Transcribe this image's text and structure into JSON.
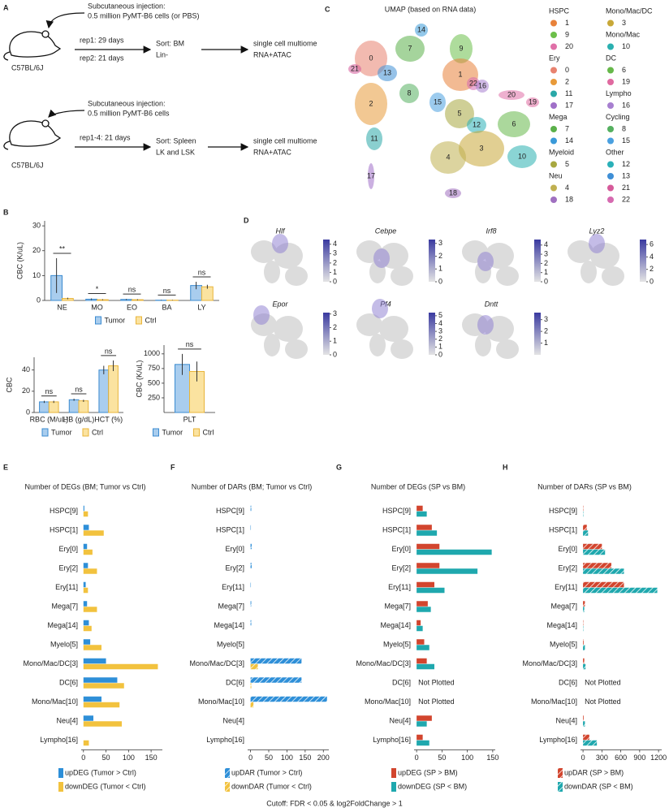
{
  "panels": [
    "A",
    "B",
    "C",
    "D",
    "E",
    "F",
    "G",
    "H"
  ],
  "footer": "Cutoff: FDR < 0.05 & log2FoldChange > 1",
  "experiments": [
    {
      "injection": [
        "Subcutaneous injection:",
        "0.5 million PyMT-B6 cells (or PBS)"
      ],
      "reps": [
        "rep1: 29 days",
        "rep2: 21 days"
      ],
      "sort": [
        "Sort: BM",
        "Lin-"
      ],
      "output": [
        "single cell multiome",
        "RNA+ATAC"
      ],
      "mouse": "C57BL/6J"
    },
    {
      "injection": [
        "Subcutaneous injection:",
        "0.5 million PyMT-B6 cells"
      ],
      "reps": [
        "rep1-4: 21 days"
      ],
      "sort": [
        "Sort: Spleen",
        "LK and LSK"
      ],
      "output": [
        "single cell multiome",
        "RNA+ATAC"
      ],
      "mouse": "C57BL/6J"
    }
  ],
  "umap": {
    "title": "UMAP (based on RNA data)",
    "clusters": [
      {
        "label": "0",
        "color": "#e8826f"
      },
      {
        "label": "7",
        "color": "#5bb04a"
      },
      {
        "label": "14",
        "color": "#3a9ad9"
      },
      {
        "label": "9",
        "color": "#6cbf4a"
      },
      {
        "label": "21",
        "color": "#d65a9a"
      },
      {
        "label": "13",
        "color": "#3f8fd6"
      },
      {
        "label": "1",
        "color": "#e8823a"
      },
      {
        "label": "22",
        "color": "#d66ab0"
      },
      {
        "label": "16",
        "color": "#a77fd0"
      },
      {
        "label": "2",
        "color": "#e89a3a"
      },
      {
        "label": "8",
        "color": "#55b060"
      },
      {
        "label": "15",
        "color": "#4aa0e0"
      },
      {
        "label": "5",
        "color": "#a8a840"
      },
      {
        "label": "12",
        "color": "#2ab0b8"
      },
      {
        "label": "20",
        "color": "#e070a8"
      },
      {
        "label": "19",
        "color": "#e06aa0"
      },
      {
        "label": "6",
        "color": "#66b84a"
      },
      {
        "label": "11",
        "color": "#2aa8a8"
      },
      {
        "label": "3",
        "color": "#c8a838"
      },
      {
        "label": "10",
        "color": "#2ab0b0"
      },
      {
        "label": "4",
        "color": "#c0b050"
      },
      {
        "label": "17",
        "color": "#a070c8"
      },
      {
        "label": "18",
        "color": "#a070c0"
      }
    ],
    "legend_columns": [
      [
        {
          "title": "HSPC",
          "items": [
            {
              "label": "1",
              "color": "#e8823a"
            },
            {
              "label": "9",
              "color": "#6cbf4a"
            },
            {
              "label": "20",
              "color": "#e070a8"
            }
          ]
        },
        {
          "title": "Ery",
          "items": [
            {
              "label": "0",
              "color": "#e8826f"
            },
            {
              "label": "2",
              "color": "#e89a3a"
            },
            {
              "label": "11",
              "color": "#2aa8a8"
            },
            {
              "label": "17",
              "color": "#a070c8"
            }
          ]
        },
        {
          "title": "Mega",
          "items": [
            {
              "label": "7",
              "color": "#5bb04a"
            },
            {
              "label": "14",
              "color": "#3a9ad9"
            }
          ]
        },
        {
          "title": "Myeloid",
          "items": [
            {
              "label": "5",
              "color": "#a8a840"
            }
          ]
        },
        {
          "title": "Neu",
          "items": [
            {
              "label": "4",
              "color": "#c0b050"
            },
            {
              "label": "18",
              "color": "#a070c0"
            }
          ]
        }
      ],
      [
        {
          "title": "Mono/Mac/DC",
          "items": [
            {
              "label": "3",
              "color": "#c8a838"
            }
          ]
        },
        {
          "title": "Mono/Mac",
          "items": [
            {
              "label": "10",
              "color": "#2ab0b0"
            }
          ]
        },
        {
          "title": "DC",
          "items": [
            {
              "label": "6",
              "color": "#66b84a"
            },
            {
              "label": "19",
              "color": "#e06aa0"
            }
          ]
        },
        {
          "title": "Lympho",
          "items": [
            {
              "label": "16",
              "color": "#a77fd0"
            }
          ]
        },
        {
          "title": "Cycling",
          "items": [
            {
              "label": "8",
              "color": "#55b060"
            },
            {
              "label": "15",
              "color": "#4aa0e0"
            }
          ]
        },
        {
          "title": "Other",
          "items": [
            {
              "label": "12",
              "color": "#2ab0b8"
            },
            {
              "label": "13",
              "color": "#3f8fd6"
            },
            {
              "label": "21",
              "color": "#d65a9a"
            },
            {
              "label": "22",
              "color": "#d66ab0"
            }
          ]
        }
      ]
    ]
  },
  "features": [
    {
      "gene": "Hlf",
      "lim": [
        0,
        4.5
      ],
      "ticks": [
        0,
        1,
        2,
        3,
        4
      ]
    },
    {
      "gene": "Cebpe",
      "lim": [
        0,
        3.3
      ],
      "ticks": [
        0,
        1,
        2,
        3
      ]
    },
    {
      "gene": "Irf8",
      "lim": [
        0,
        4.6
      ],
      "ticks": [
        0,
        1,
        2,
        3,
        4
      ]
    },
    {
      "gene": "Lyz2",
      "lim": [
        0,
        6.8
      ],
      "ticks": [
        0,
        2,
        4,
        6
      ]
    },
    {
      "gene": "Epor",
      "lim": [
        0,
        3.1
      ],
      "ticks": [
        0,
        1,
        2,
        3
      ]
    },
    {
      "gene": "Pf4",
      "lim": [
        0,
        5.4
      ],
      "ticks": [
        0,
        1,
        2,
        3,
        4,
        5
      ]
    },
    {
      "gene": "Dntt",
      "lim": [
        0,
        3.6
      ],
      "ticks": [
        1,
        2,
        3
      ]
    }
  ],
  "chart_data": [
    {
      "type": "bar",
      "ylabel": "CBC (K/uL)",
      "categories": [
        "NE",
        "MO",
        "EO",
        "BA",
        "LY"
      ],
      "ylim": [
        0,
        32
      ],
      "yticks": [
        0,
        10,
        20,
        30
      ],
      "series": [
        {
          "name": "Tumor",
          "color": "#a9cdee",
          "edgecolor": "#3b8bd0",
          "values": [
            10,
            0.5,
            0.4,
            0.1,
            6
          ],
          "errors": [
            7,
            0.3,
            0.2,
            0.1,
            1.5
          ]
        },
        {
          "name": "Ctrl",
          "color": "#fbe3a0",
          "edgecolor": "#e8b43a",
          "values": [
            0.8,
            0.3,
            0.3,
            0.1,
            5.5
          ],
          "errors": [
            0.3,
            0.2,
            0.2,
            0.1,
            0.8
          ]
        }
      ],
      "significance": [
        "**",
        "*",
        "ns",
        "ns",
        "ns"
      ]
    },
    {
      "type": "bar",
      "ylabel": "CBC",
      "categories": [
        "RBC (M/uL)",
        "HB (g/dL)",
        "HCT (%)"
      ],
      "ylim": [
        0,
        52
      ],
      "yticks": [
        0,
        20,
        40
      ],
      "series": [
        {
          "name": "Tumor",
          "color": "#a9cdee",
          "edgecolor": "#3b8bd0",
          "values": [
            10,
            12,
            40
          ],
          "errors": [
            1,
            1,
            4
          ]
        },
        {
          "name": "Ctrl",
          "color": "#fbe3a0",
          "edgecolor": "#e8b43a",
          "values": [
            10,
            11,
            44
          ],
          "errors": [
            1,
            1,
            5
          ]
        }
      ],
      "significance": [
        "ns",
        "ns",
        "ns"
      ]
    },
    {
      "type": "bar",
      "ylabel": "CBC (K/uL)",
      "categories": [
        "PLT"
      ],
      "ylim": [
        0,
        1150
      ],
      "yticks": [
        250,
        500,
        750,
        1000
      ],
      "series": [
        {
          "name": "Tumor",
          "color": "#a9cdee",
          "edgecolor": "#3b8bd0",
          "values": [
            820
          ],
          "errors": [
            180
          ]
        },
        {
          "name": "Ctrl",
          "color": "#fbe3a0",
          "edgecolor": "#e8b43a",
          "values": [
            700
          ],
          "errors": [
            170
          ]
        }
      ],
      "significance": [
        "ns"
      ]
    },
    {
      "type": "barh",
      "title": "Number of DEGs (BM; Tumor vs Ctrl)",
      "hatch": false,
      "categories": [
        "HSPC[9]",
        "HSPC[1]",
        "Ery[0]",
        "Ery[2]",
        "Ery[11]",
        "Mega[7]",
        "Mega[14]",
        "Myelo[5]",
        "Mono/Mac/DC[3]",
        "DC[6]",
        "Mono/Mac[10]",
        "Neu[4]",
        "Lympho[16]"
      ],
      "xlim": [
        -5,
        175
      ],
      "xticks": [
        0,
        50,
        100,
        150
      ],
      "series": [
        {
          "name": "upDEG (Tumor > Ctrl)",
          "color": "#2e8fd8",
          "values": [
            2,
            12,
            8,
            10,
            5,
            8,
            12,
            15,
            50,
            75,
            40,
            22,
            0
          ]
        },
        {
          "name": "downDEG (Tumor < Ctrl)",
          "color": "#f2c23e",
          "values": [
            10,
            45,
            20,
            30,
            10,
            30,
            18,
            40,
            165,
            90,
            80,
            85,
            12
          ]
        }
      ],
      "notes": [
        null,
        null,
        null,
        null,
        null,
        null,
        null,
        null,
        null,
        null,
        null,
        null,
        null
      ]
    },
    {
      "type": "barh",
      "title": "Number of DARs (BM; Tumor vs Ctrl)",
      "hatch": true,
      "categories": [
        "HSPC[9]",
        "HSPC[1]",
        "Ery[0]",
        "Ery[2]",
        "Ery[11]",
        "Mega[7]",
        "Mega[14]",
        "Myelo[5]",
        "Mono/Mac/DC[3]",
        "DC[6]",
        "Mono/Mac[10]",
        "Neu[4]",
        "Lympho[16]"
      ],
      "xlim": [
        -8,
        215
      ],
      "xticks": [
        0,
        50,
        100,
        150,
        200
      ],
      "series": [
        {
          "name": "upDAR (Tumor > Ctrl)",
          "color": "#2e8fd8",
          "values": [
            2,
            1,
            3,
            3,
            1,
            2,
            2,
            0,
            140,
            140,
            210,
            0,
            0
          ]
        },
        {
          "name": "downDAR (Tumor < Ctrl)",
          "color": "#f2c23e",
          "values": [
            0,
            0,
            0,
            0,
            0,
            0,
            0,
            0,
            20,
            2,
            8,
            0,
            0
          ]
        }
      ],
      "notes": [
        null,
        null,
        null,
        null,
        null,
        null,
        null,
        null,
        null,
        null,
        null,
        null,
        null
      ]
    },
    {
      "type": "barh",
      "title": "Number of DEGs (SP vs BM)",
      "hatch": false,
      "categories": [
        "HSPC[9]",
        "HSPC[1]",
        "Ery[0]",
        "Ery[2]",
        "Ery[11]",
        "Mega[7]",
        "Mega[14]",
        "Myelo[5]",
        "Mono/Mac/DC[3]",
        "DC[6]",
        "Mono/Mac[10]",
        "Neu[4]",
        "Lympho[16]"
      ],
      "xlim": [
        -5,
        155
      ],
      "xticks": [
        0,
        50,
        100,
        150
      ],
      "series": [
        {
          "name": "upDEG (SP > BM)",
          "color": "#d2452e",
          "values": [
            12,
            30,
            45,
            45,
            35,
            22,
            8,
            15,
            20,
            null,
            null,
            30,
            12
          ]
        },
        {
          "name": "downDEG (SP < BM)",
          "color": "#1fa8ae",
          "values": [
            20,
            40,
            148,
            120,
            55,
            28,
            12,
            25,
            35,
            null,
            null,
            20,
            25
          ]
        }
      ],
      "notes": [
        null,
        null,
        null,
        null,
        null,
        null,
        null,
        null,
        null,
        "Not Plotted",
        "Not Plotted",
        null,
        null
      ]
    },
    {
      "type": "barh",
      "title": "Number of DARs (SP vs BM)",
      "hatch": true,
      "categories": [
        "HSPC[9]",
        "HSPC[1]",
        "Ery[0]",
        "Ery[2]",
        "Ery[11]",
        "Mega[7]",
        "Mega[14]",
        "Myelo[5]",
        "Mono/Mac/DC[3]",
        "DC[6]",
        "Mono/Mac[10]",
        "Neu[4]",
        "Lympho[16]"
      ],
      "xlim": [
        -40,
        1250
      ],
      "xticks": [
        0,
        300,
        600,
        900,
        1200
      ],
      "series": [
        {
          "name": "upDAR (SP > BM)",
          "color": "#d2452e",
          "values": [
            5,
            60,
            300,
            450,
            650,
            30,
            5,
            10,
            20,
            null,
            null,
            10,
            100
          ]
        },
        {
          "name": "downDAR (SP < BM)",
          "color": "#1fa8ae",
          "values": [
            5,
            80,
            350,
            650,
            1180,
            20,
            5,
            30,
            40,
            null,
            null,
            30,
            220
          ]
        }
      ],
      "notes": [
        null,
        null,
        null,
        null,
        null,
        null,
        null,
        null,
        null,
        "Not Plotted",
        "Not Plotted",
        null,
        null
      ]
    }
  ]
}
